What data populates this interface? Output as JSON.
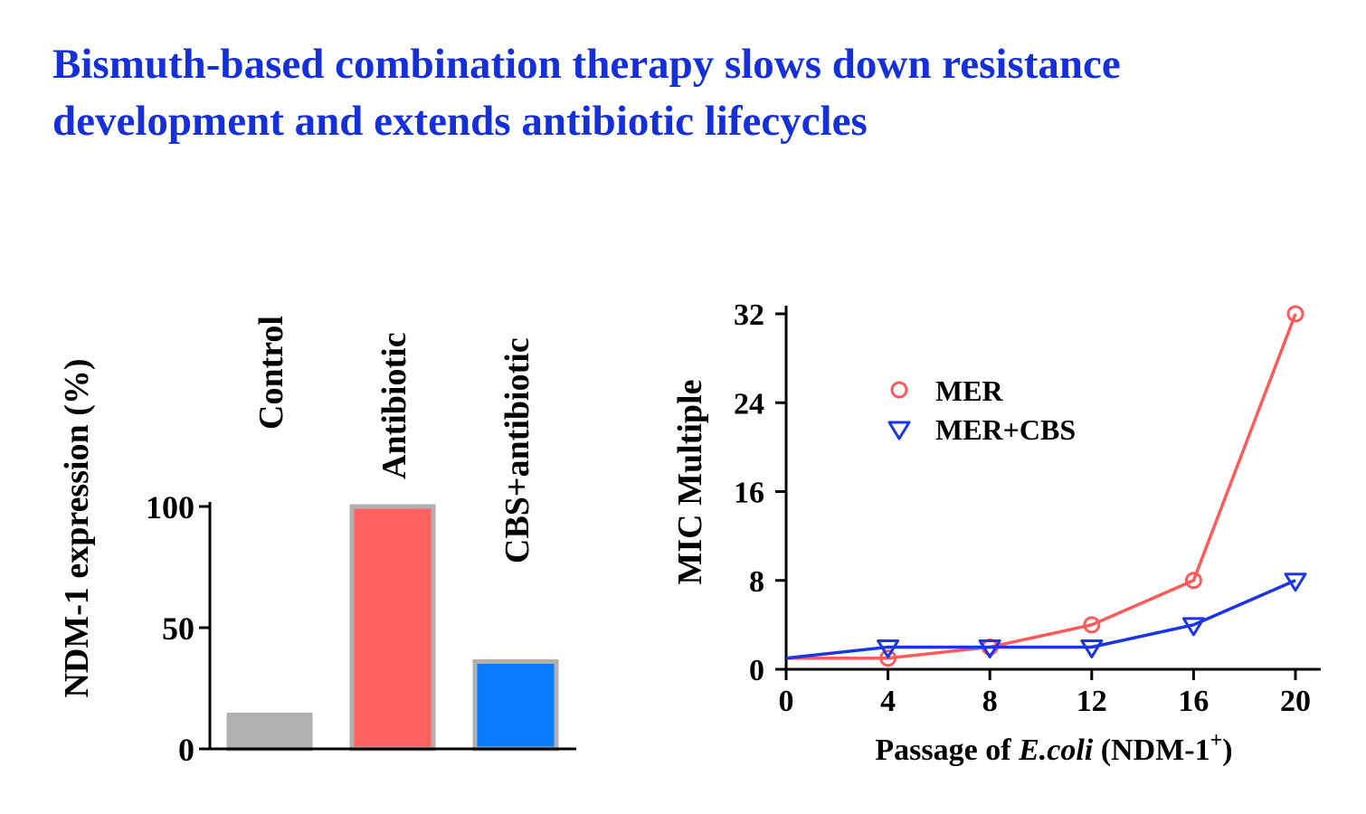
{
  "title": {
    "line1": "Bismuth-based combination therapy slows down resistance",
    "line2": "development and extends antibiotic lifecycles"
  },
  "colors": {
    "title": "#1530d8",
    "control": "#b2b2b2",
    "antibiotic": "#ff6060",
    "cbs": "#0b7bff",
    "mer": "#ff5a5a",
    "mer_cbs": "#1a35e6"
  },
  "chart_data": [
    {
      "type": "bar",
      "categories": [
        "Control",
        "Antibiotic",
        "CBS+antibiotic"
      ],
      "values": [
        14,
        100,
        36
      ],
      "ylabel": "NDM-1 expression (%)",
      "xlabel": "",
      "ylim": [
        0,
        100
      ],
      "yticks": [
        0,
        50,
        100
      ],
      "grid": false
    },
    {
      "type": "line",
      "x": [
        0,
        4,
        8,
        12,
        16,
        20
      ],
      "series": [
        {
          "name": "MER",
          "values": [
            1,
            1,
            2,
            4,
            8,
            32
          ],
          "marker": "circle"
        },
        {
          "name": "MER+CBS",
          "values": [
            1,
            2,
            2,
            2,
            4,
            8
          ],
          "marker": "triangle-down"
        }
      ],
      "xlabel_prefix": "Passage of ",
      "xlabel_italic": "E.coli",
      "xlabel_suffix": " (NDM-1",
      "xlabel_sup": "+",
      "xlabel_end": ")",
      "ylabel": "MIC Multiple",
      "xlim": [
        0,
        20
      ],
      "ylim": [
        0,
        32
      ],
      "xticks": [
        0,
        4,
        8,
        12,
        16,
        20
      ],
      "yticks": [
        0,
        8,
        16,
        24,
        32
      ],
      "legend_position": "top-left",
      "grid": false
    }
  ]
}
